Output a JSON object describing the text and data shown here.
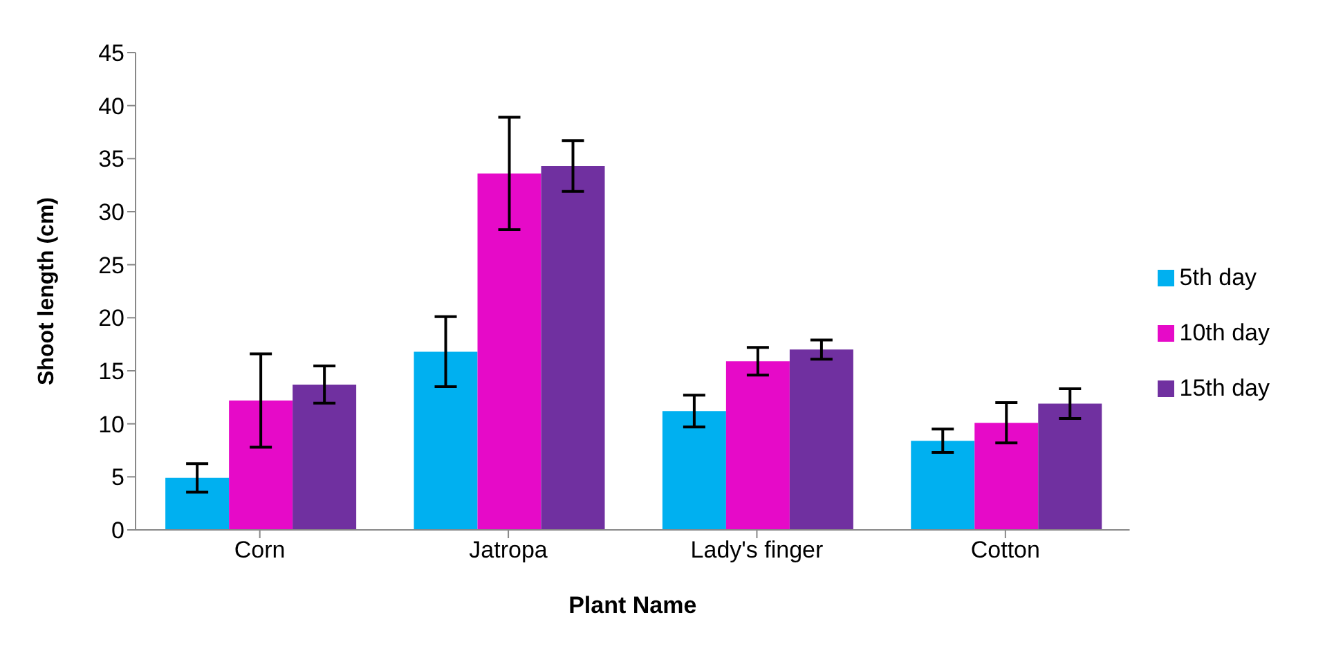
{
  "chart_data": {
    "type": "bar",
    "xlabel": "Plant Name",
    "ylabel": "Shoot length (cm)",
    "categories": [
      "Corn",
      "Jatropa",
      "Lady's finger",
      "Cotton"
    ],
    "series": [
      {
        "name": "5th day",
        "color": "#00b0f0",
        "values": [
          4.9,
          16.8,
          11.2,
          8.4
        ],
        "errors": [
          1.35,
          3.3,
          1.5,
          1.1
        ]
      },
      {
        "name": "10th day",
        "color": "#e60ac8",
        "values": [
          12.2,
          33.6,
          15.9,
          10.1
        ],
        "errors": [
          4.4,
          5.3,
          1.3,
          1.9
        ]
      },
      {
        "name": "15th day",
        "color": "#7030a0",
        "values": [
          13.7,
          34.3,
          17.0,
          11.9
        ],
        "errors": [
          1.75,
          2.4,
          0.9,
          1.4
        ]
      }
    ],
    "ylim": [
      0,
      45
    ],
    "yticks": [
      0,
      5,
      10,
      15,
      20,
      25,
      30,
      35,
      40,
      45
    ],
    "grid": false,
    "legend": "right"
  }
}
